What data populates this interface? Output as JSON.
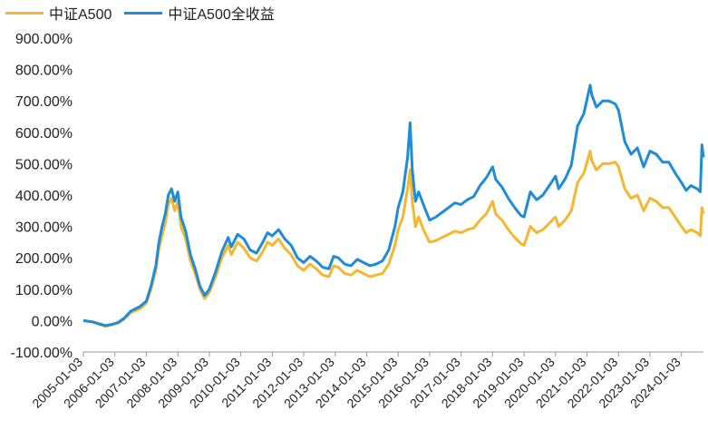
{
  "chart_data": {
    "type": "line",
    "title": "",
    "xlabel": "",
    "ylabel": "",
    "ylim": [
      -100,
      900
    ],
    "yticks": [
      "900.00%",
      "800.00%",
      "700.00%",
      "600.00%",
      "500.00%",
      "400.00%",
      "300.00%",
      "200.00%",
      "100.00%",
      "0.00%",
      "-100.00%"
    ],
    "ytick_values": [
      900,
      800,
      700,
      600,
      500,
      400,
      300,
      200,
      100,
      0,
      -100
    ],
    "xticks": [
      "2005-01-03",
      "2006-01-03",
      "2007-01-03",
      "2008-01-03",
      "2009-01-03",
      "2010-01-03",
      "2011-01-03",
      "2012-01-03",
      "2013-01-03",
      "2014-01-03",
      "2015-01-03",
      "2016-01-03",
      "2017-01-03",
      "2018-01-03",
      "2019-01-03",
      "2020-01-03",
      "2021-01-03",
      "2022-01-03",
      "2023-01-03",
      "2024-01-03"
    ],
    "x_start": 2005.0,
    "x_end": 2024.7,
    "legend_position": "top-left",
    "grid": false,
    "series": [
      {
        "name": "中证A500",
        "color": "#F5B731",
        "points": [
          [
            2005.0,
            0
          ],
          [
            2005.3,
            -5
          ],
          [
            2005.5,
            -12
          ],
          [
            2005.7,
            -18
          ],
          [
            2005.9,
            -14
          ],
          [
            2006.1,
            -8
          ],
          [
            2006.3,
            5
          ],
          [
            2006.5,
            25
          ],
          [
            2006.8,
            38
          ],
          [
            2007.0,
            55
          ],
          [
            2007.15,
            100
          ],
          [
            2007.3,
            160
          ],
          [
            2007.4,
            230
          ],
          [
            2007.5,
            270
          ],
          [
            2007.6,
            310
          ],
          [
            2007.7,
            370
          ],
          [
            2007.8,
            390
          ],
          [
            2007.9,
            350
          ],
          [
            2008.0,
            380
          ],
          [
            2008.1,
            300
          ],
          [
            2008.25,
            260
          ],
          [
            2008.4,
            190
          ],
          [
            2008.55,
            150
          ],
          [
            2008.7,
            100
          ],
          [
            2008.85,
            70
          ],
          [
            2009.0,
            90
          ],
          [
            2009.2,
            140
          ],
          [
            2009.4,
            200
          ],
          [
            2009.6,
            240
          ],
          [
            2009.7,
            210
          ],
          [
            2009.9,
            250
          ],
          [
            2010.1,
            230
          ],
          [
            2010.3,
            200
          ],
          [
            2010.5,
            190
          ],
          [
            2010.7,
            220
          ],
          [
            2010.85,
            250
          ],
          [
            2011.0,
            240
          ],
          [
            2011.2,
            260
          ],
          [
            2011.4,
            230
          ],
          [
            2011.6,
            210
          ],
          [
            2011.8,
            175
          ],
          [
            2012.0,
            160
          ],
          [
            2012.2,
            180
          ],
          [
            2012.4,
            165
          ],
          [
            2012.6,
            145
          ],
          [
            2012.8,
            140
          ],
          [
            2012.95,
            175
          ],
          [
            2013.1,
            170
          ],
          [
            2013.3,
            150
          ],
          [
            2013.5,
            145
          ],
          [
            2013.7,
            160
          ],
          [
            2013.9,
            150
          ],
          [
            2014.1,
            140
          ],
          [
            2014.3,
            145
          ],
          [
            2014.5,
            150
          ],
          [
            2014.7,
            180
          ],
          [
            2014.9,
            240
          ],
          [
            2015.0,
            290
          ],
          [
            2015.15,
            330
          ],
          [
            2015.3,
            420
          ],
          [
            2015.38,
            480
          ],
          [
            2015.45,
            380
          ],
          [
            2015.55,
            300
          ],
          [
            2015.65,
            330
          ],
          [
            2015.8,
            290
          ],
          [
            2016.0,
            250
          ],
          [
            2016.2,
            255
          ],
          [
            2016.4,
            265
          ],
          [
            2016.6,
            275
          ],
          [
            2016.8,
            285
          ],
          [
            2017.0,
            280
          ],
          [
            2017.2,
            290
          ],
          [
            2017.4,
            295
          ],
          [
            2017.6,
            320
          ],
          [
            2017.8,
            340
          ],
          [
            2018.0,
            380
          ],
          [
            2018.1,
            340
          ],
          [
            2018.3,
            320
          ],
          [
            2018.5,
            290
          ],
          [
            2018.7,
            265
          ],
          [
            2018.9,
            245
          ],
          [
            2019.0,
            240
          ],
          [
            2019.2,
            300
          ],
          [
            2019.4,
            280
          ],
          [
            2019.6,
            290
          ],
          [
            2019.8,
            310
          ],
          [
            2020.0,
            330
          ],
          [
            2020.1,
            300
          ],
          [
            2020.3,
            320
          ],
          [
            2020.5,
            350
          ],
          [
            2020.7,
            440
          ],
          [
            2020.9,
            470
          ],
          [
            2021.1,
            540
          ],
          [
            2021.15,
            510
          ],
          [
            2021.3,
            480
          ],
          [
            2021.5,
            500
          ],
          [
            2021.7,
            500
          ],
          [
            2021.9,
            505
          ],
          [
            2022.0,
            490
          ],
          [
            2022.2,
            420
          ],
          [
            2022.4,
            390
          ],
          [
            2022.6,
            400
          ],
          [
            2022.8,
            350
          ],
          [
            2023.0,
            390
          ],
          [
            2023.2,
            380
          ],
          [
            2023.4,
            360
          ],
          [
            2023.6,
            360
          ],
          [
            2023.8,
            330
          ],
          [
            2024.0,
            300
          ],
          [
            2024.15,
            280
          ],
          [
            2024.3,
            290
          ],
          [
            2024.5,
            280
          ],
          [
            2024.6,
            270
          ],
          [
            2024.65,
            360
          ],
          [
            2024.7,
            340
          ]
        ]
      },
      {
        "name": "中证A500全收益",
        "color": "#1E8CD7",
        "points": [
          [
            2005.0,
            0
          ],
          [
            2005.3,
            -4
          ],
          [
            2005.5,
            -10
          ],
          [
            2005.7,
            -16
          ],
          [
            2005.9,
            -12
          ],
          [
            2006.1,
            -6
          ],
          [
            2006.3,
            8
          ],
          [
            2006.5,
            30
          ],
          [
            2006.8,
            45
          ],
          [
            2007.0,
            62
          ],
          [
            2007.15,
            110
          ],
          [
            2007.3,
            175
          ],
          [
            2007.4,
            250
          ],
          [
            2007.5,
            300
          ],
          [
            2007.6,
            340
          ],
          [
            2007.7,
            400
          ],
          [
            2007.8,
            420
          ],
          [
            2007.9,
            380
          ],
          [
            2008.0,
            410
          ],
          [
            2008.1,
            330
          ],
          [
            2008.25,
            285
          ],
          [
            2008.4,
            210
          ],
          [
            2008.55,
            165
          ],
          [
            2008.7,
            110
          ],
          [
            2008.85,
            80
          ],
          [
            2009.0,
            100
          ],
          [
            2009.2,
            155
          ],
          [
            2009.4,
            220
          ],
          [
            2009.6,
            265
          ],
          [
            2009.7,
            235
          ],
          [
            2009.9,
            275
          ],
          [
            2010.1,
            260
          ],
          [
            2010.3,
            225
          ],
          [
            2010.5,
            215
          ],
          [
            2010.7,
            250
          ],
          [
            2010.85,
            280
          ],
          [
            2011.0,
            270
          ],
          [
            2011.2,
            290
          ],
          [
            2011.4,
            260
          ],
          [
            2011.6,
            240
          ],
          [
            2011.8,
            200
          ],
          [
            2012.0,
            185
          ],
          [
            2012.2,
            205
          ],
          [
            2012.4,
            190
          ],
          [
            2012.6,
            170
          ],
          [
            2012.8,
            165
          ],
          [
            2012.95,
            205
          ],
          [
            2013.1,
            200
          ],
          [
            2013.3,
            180
          ],
          [
            2013.5,
            175
          ],
          [
            2013.7,
            195
          ],
          [
            2013.9,
            185
          ],
          [
            2014.1,
            175
          ],
          [
            2014.3,
            180
          ],
          [
            2014.5,
            190
          ],
          [
            2014.7,
            225
          ],
          [
            2014.9,
            300
          ],
          [
            2015.0,
            360
          ],
          [
            2015.15,
            410
          ],
          [
            2015.3,
            520
          ],
          [
            2015.38,
            630
          ],
          [
            2015.45,
            480
          ],
          [
            2015.55,
            380
          ],
          [
            2015.65,
            410
          ],
          [
            2015.8,
            370
          ],
          [
            2016.0,
            320
          ],
          [
            2016.2,
            330
          ],
          [
            2016.4,
            345
          ],
          [
            2016.6,
            360
          ],
          [
            2016.8,
            375
          ],
          [
            2017.0,
            370
          ],
          [
            2017.2,
            385
          ],
          [
            2017.4,
            395
          ],
          [
            2017.6,
            430
          ],
          [
            2017.8,
            455
          ],
          [
            2018.0,
            490
          ],
          [
            2018.1,
            450
          ],
          [
            2018.3,
            425
          ],
          [
            2018.5,
            390
          ],
          [
            2018.7,
            360
          ],
          [
            2018.9,
            335
          ],
          [
            2019.0,
            330
          ],
          [
            2019.2,
            410
          ],
          [
            2019.4,
            385
          ],
          [
            2019.6,
            400
          ],
          [
            2019.8,
            430
          ],
          [
            2020.0,
            460
          ],
          [
            2020.1,
            420
          ],
          [
            2020.3,
            450
          ],
          [
            2020.5,
            495
          ],
          [
            2020.7,
            620
          ],
          [
            2020.9,
            660
          ],
          [
            2021.1,
            750
          ],
          [
            2021.15,
            720
          ],
          [
            2021.3,
            680
          ],
          [
            2021.5,
            700
          ],
          [
            2021.7,
            700
          ],
          [
            2021.9,
            690
          ],
          [
            2022.0,
            670
          ],
          [
            2022.2,
            570
          ],
          [
            2022.4,
            530
          ],
          [
            2022.6,
            550
          ],
          [
            2022.8,
            490
          ],
          [
            2023.0,
            540
          ],
          [
            2023.2,
            530
          ],
          [
            2023.4,
            505
          ],
          [
            2023.6,
            505
          ],
          [
            2023.8,
            470
          ],
          [
            2024.0,
            440
          ],
          [
            2024.15,
            415
          ],
          [
            2024.3,
            430
          ],
          [
            2024.5,
            420
          ],
          [
            2024.6,
            410
          ],
          [
            2024.65,
            560
          ],
          [
            2024.7,
            520
          ]
        ]
      }
    ]
  }
}
